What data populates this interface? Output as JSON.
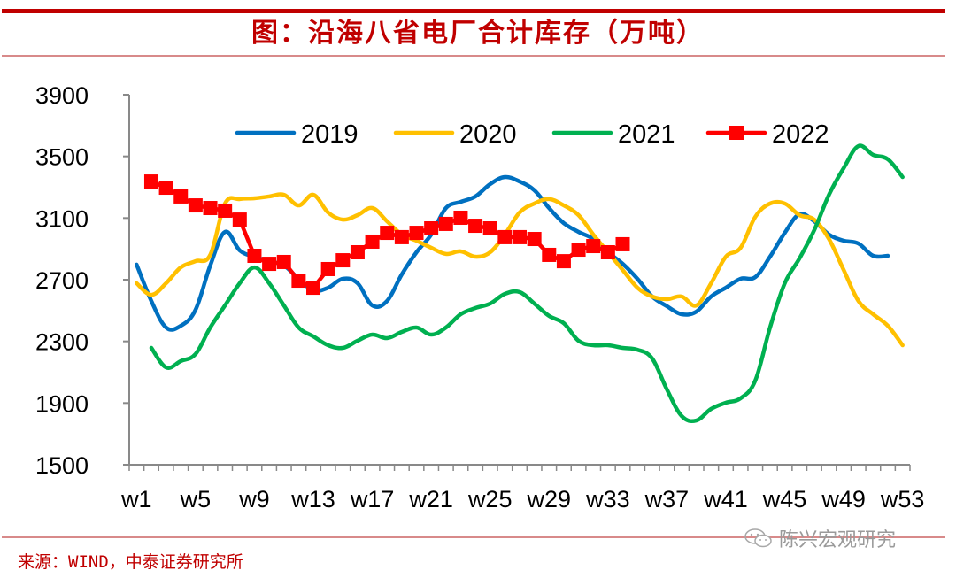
{
  "header": {
    "title": "图：沿海八省电厂合计库存（万吨）"
  },
  "footer": {
    "source": "来源：WIND，中泰证券研究所",
    "watermark": "陈兴宏观研究",
    "watermark_icon": "wechat-icon"
  },
  "colors": {
    "accent": "#c00000",
    "s2019": "#0070c0",
    "s2020": "#ffc000",
    "s2021": "#00b050",
    "s2022": "#ff0000",
    "axis": "#898989"
  },
  "chart_data": {
    "type": "line",
    "title": "图：沿海八省电厂合计库存（万吨）",
    "xlabel": "",
    "ylabel": "",
    "ylim": [
      1500,
      3900
    ],
    "yticks": [
      1500,
      1900,
      2300,
      2700,
      3100,
      3500,
      3900
    ],
    "ytick_labels": [
      "1500",
      "1900",
      "2300",
      "2700",
      "3100",
      "3500",
      "3900"
    ],
    "xtick_labels": [
      "w1",
      "w5",
      "w9",
      "w13",
      "w17",
      "w21",
      "w25",
      "w29",
      "w33",
      "w37",
      "w41",
      "w45",
      "w49",
      "w53"
    ],
    "xtick_weeks": [
      1,
      5,
      9,
      13,
      17,
      21,
      25,
      29,
      33,
      37,
      41,
      45,
      49,
      53
    ],
    "x_count": 53,
    "grid": false,
    "legend_position": "top",
    "series": [
      {
        "name": "2019",
        "color_key": "s2019",
        "marker": "none",
        "start_week": 1,
        "values": [
          2798,
          2562,
          2390,
          2401,
          2505,
          2792,
          3010,
          2890,
          2849,
          2820,
          2792,
          2706,
          2631,
          2648,
          2706,
          2677,
          2533,
          2562,
          2734,
          2878,
          2993,
          3165,
          3205,
          3240,
          3320,
          3366,
          3337,
          3280,
          3165,
          3067,
          3010,
          2964,
          2878,
          2803,
          2706,
          2591,
          2528,
          2476,
          2493,
          2591,
          2648,
          2706,
          2717,
          2849,
          3004,
          3125,
          3079,
          2993,
          2953,
          2935,
          2855,
          2855
        ]
      },
      {
        "name": "2020",
        "color_key": "s2020",
        "marker": "none",
        "start_week": 1,
        "values": [
          2677,
          2602,
          2677,
          2780,
          2820,
          2861,
          3194,
          3223,
          3228,
          3240,
          3251,
          3182,
          3251,
          3136,
          3090,
          3119,
          3165,
          3079,
          2993,
          2953,
          2907,
          2867,
          2884,
          2849,
          2878,
          2993,
          3136,
          3194,
          3223,
          3182,
          3119,
          2993,
          2878,
          2763,
          2648,
          2591,
          2574,
          2591,
          2533,
          2677,
          2849,
          2907,
          3108,
          3194,
          3194,
          3119,
          3090,
          2964,
          2763,
          2562,
          2476,
          2401,
          2275
        ]
      },
      {
        "name": "2021",
        "color_key": "s2021",
        "marker": "none",
        "start_week": 2,
        "values": [
          2258,
          2131,
          2172,
          2218,
          2390,
          2533,
          2677,
          2780,
          2677,
          2533,
          2390,
          2332,
          2275,
          2258,
          2304,
          2344,
          2321,
          2361,
          2390,
          2344,
          2390,
          2476,
          2516,
          2545,
          2608,
          2620,
          2545,
          2465,
          2418,
          2304,
          2275,
          2275,
          2258,
          2246,
          2189,
          1988,
          1816,
          1787,
          1862,
          1902,
          1931,
          2046,
          2390,
          2677,
          2838,
          3021,
          3251,
          3424,
          3567,
          3510,
          3481,
          3366
        ]
      },
      {
        "name": "2022",
        "color_key": "s2022",
        "marker": "square",
        "start_week": 2,
        "values": [
          3337,
          3297,
          3240,
          3182,
          3165,
          3148,
          3090,
          2855,
          2803,
          2815,
          2694,
          2648,
          2769,
          2826,
          2878,
          2947,
          3004,
          2976,
          3004,
          3033,
          3062,
          3102,
          3050,
          3033,
          2976,
          2976,
          2964,
          2861,
          2820,
          2895,
          2918,
          2878,
          2930
        ]
      }
    ]
  }
}
